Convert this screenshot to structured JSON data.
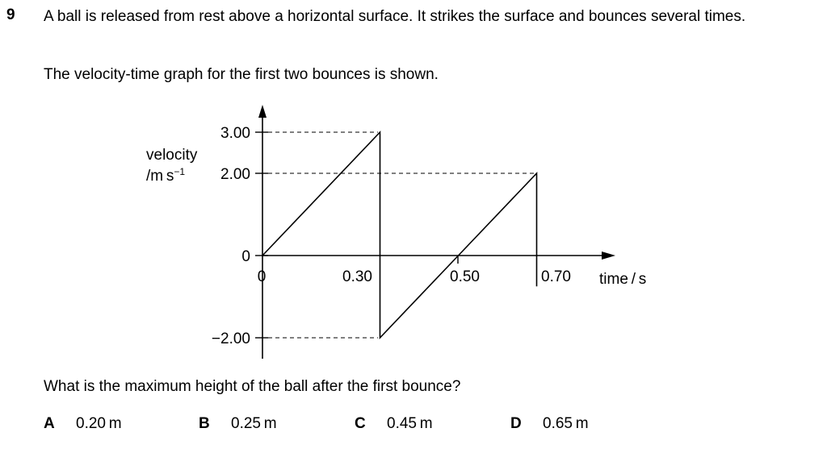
{
  "question": {
    "number": "9",
    "stem": "A ball is released from rest above a horizontal surface. It strikes the surface and bounces several times.",
    "intro": "The velocity-time graph for the first two bounces is shown.",
    "prompt": "What is the maximum height of the ball after the first bounce?"
  },
  "options": [
    {
      "letter": "A",
      "text": "0.20 m"
    },
    {
      "letter": "B",
      "text": "0.25 m"
    },
    {
      "letter": "C",
      "text": "0.45 m"
    },
    {
      "letter": "D",
      "text": "0.65 m"
    }
  ],
  "chart_data": {
    "type": "line",
    "ylabel_line1": "velocity",
    "ylabel_unit": "/m s",
    "ylabel_unit_exp": "−1",
    "xlabel": "time / s",
    "y_tick_labels": {
      "v3": "3.00",
      "v2": "2.00",
      "v0": "0",
      "vm2": "−2.00"
    },
    "x_tick_labels": {
      "t0": "0",
      "t030": "0.30",
      "t050": "0.50",
      "t070": "0.70"
    },
    "xlim": [
      0,
      0.8
    ],
    "ylim": [
      -2.0,
      3.0
    ],
    "series": [
      {
        "x": [
          0,
          0.3,
          0.3,
          0.5,
          0.7,
          0.7
        ],
        "y": [
          0,
          3.0,
          -2.0,
          0,
          2.0,
          -0.75
        ]
      }
    ],
    "reference_lines": "dashed horizontal lines from y-axis at 3.00, 2.00, -2.00 to the graph",
    "grid": false
  }
}
